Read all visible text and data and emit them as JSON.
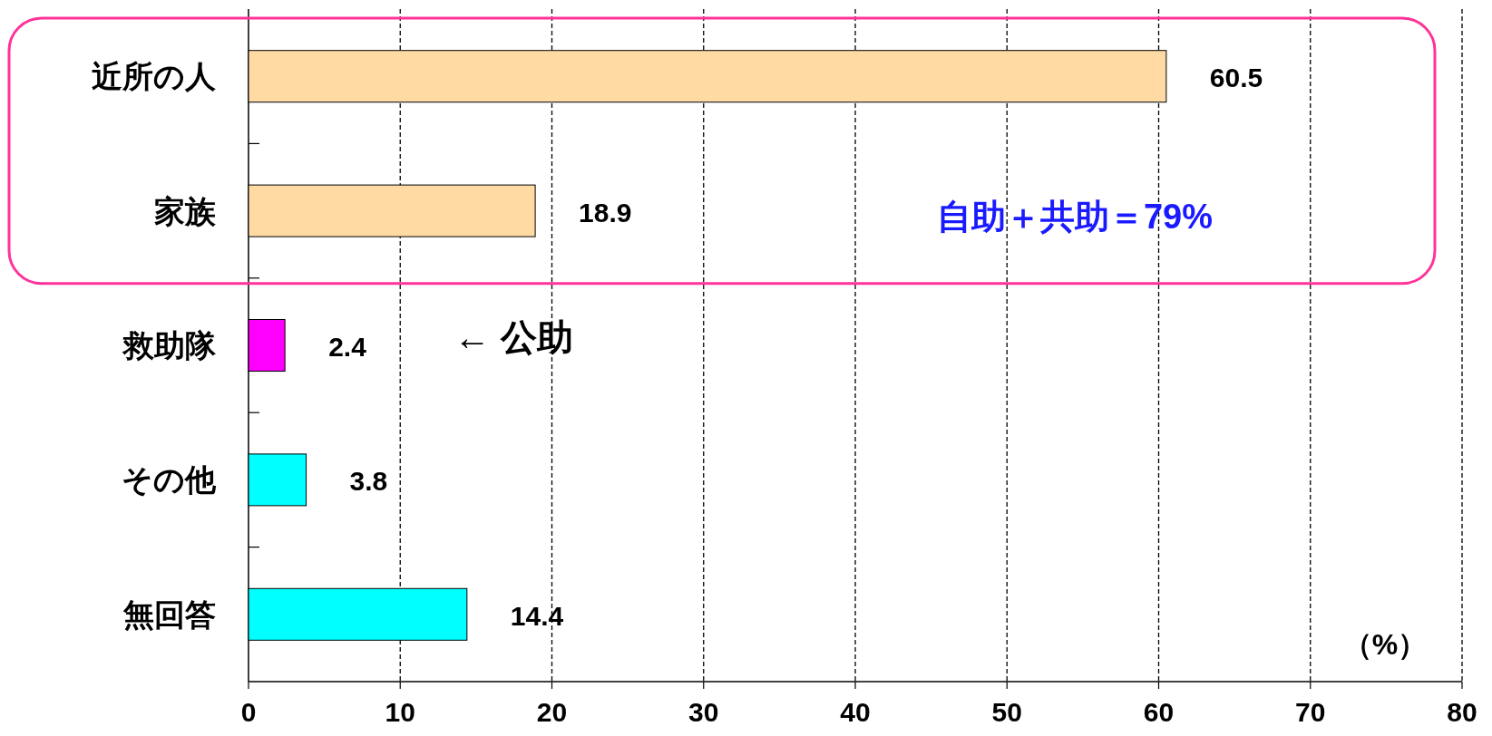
{
  "chart_data": {
    "type": "bar",
    "orientation": "horizontal",
    "categories": [
      "近所の人",
      "家族",
      "救助隊",
      "その他",
      "無回答"
    ],
    "values": [
      60.5,
      18.9,
      2.4,
      3.8,
      14.4
    ],
    "colors": [
      "#ffdaa3",
      "#ffdaa3",
      "#ff00ff",
      "#00ffff",
      "#00ffff"
    ],
    "xlim": [
      0,
      80
    ],
    "xticks": [
      0,
      10,
      20,
      30,
      40,
      50,
      60,
      70,
      80
    ],
    "grid": "x",
    "data_labels": true,
    "annotations": [
      "自助＋共助＝79%",
      "← 公助",
      "（%）"
    ]
  }
}
